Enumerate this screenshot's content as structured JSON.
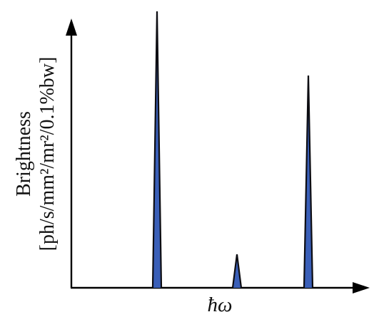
{
  "chart_data": {
    "type": "line",
    "title": "",
    "xlabel": "ħω",
    "ylabel": {
      "line1": "Brightness",
      "line2": "[ph/s/mm²/mr²/0.1%bw]"
    },
    "ticks": "none",
    "grid": false,
    "series": [
      {
        "peaks": [
          {
            "x": 0.3,
            "y": 0.99
          },
          {
            "x": 0.58,
            "y": 0.12
          },
          {
            "x": 0.83,
            "y": 0.76
          }
        ]
      }
    ],
    "xlim": [
      0,
      1
    ],
    "ylim": [
      0,
      1
    ],
    "colors": {
      "peak_fill": "#3a5fb8",
      "peak_edge": "#0d0d12",
      "axes": "#000000"
    }
  }
}
